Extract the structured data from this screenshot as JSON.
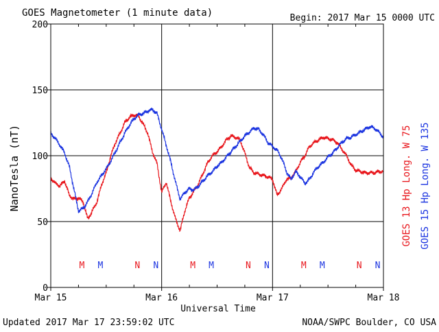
{
  "title": "GOES Magnetometer (1 minute data)",
  "begin": "Begin:  2017 Mar 15 0000 UTC",
  "footer_left": "Updated 2017 Mar 17 23:59:02 UTC",
  "footer_right": "NOAA/SWPC Boulder, CO USA",
  "colors": {
    "goes13": "#e8151b",
    "goes15": "#1a33e0",
    "axis": "#000000"
  },
  "chart_data": {
    "type": "line",
    "title": "GOES Magnetometer (1 minute data)",
    "xlabel": "Universal Time",
    "ylabel": "NanoTesla (nT)",
    "xlim": [
      "2017-03-15T00:00",
      "2017-03-18T00:00"
    ],
    "x_ticks": [
      "Mar 15",
      "Mar 16",
      "Mar 17",
      "Mar 18"
    ],
    "ylim": [
      0,
      200
    ],
    "y_ticks": [
      0,
      50,
      100,
      150,
      200
    ],
    "grid": true,
    "series": [
      {
        "name": "GOES 13 Hp  Long. W 75",
        "color": "#e8151b",
        "x": [
          "2017-03-15T00:00",
          "2017-03-15T01:00",
          "2017-03-15T02:00",
          "2017-03-15T03:00",
          "2017-03-15T04:00",
          "2017-03-15T05:00",
          "2017-03-15T06:00",
          "2017-03-15T07:00",
          "2017-03-15T08:00",
          "2017-03-15T09:00",
          "2017-03-15T10:00",
          "2017-03-15T11:00",
          "2017-03-15T12:00",
          "2017-03-15T13:00",
          "2017-03-15T14:00",
          "2017-03-15T15:00",
          "2017-03-15T16:00",
          "2017-03-15T17:00",
          "2017-03-15T18:00",
          "2017-03-15T19:00",
          "2017-03-15T20:00",
          "2017-03-15T21:00",
          "2017-03-15T22:00",
          "2017-03-15T23:00",
          "2017-03-16T00:00",
          "2017-03-16T01:00",
          "2017-03-16T02:00",
          "2017-03-16T03:00",
          "2017-03-16T04:00",
          "2017-03-16T05:00",
          "2017-03-16T06:00",
          "2017-03-16T07:00",
          "2017-03-16T08:00",
          "2017-03-16T09:00",
          "2017-03-16T10:00",
          "2017-03-16T11:00",
          "2017-03-16T12:00",
          "2017-03-16T13:00",
          "2017-03-16T14:00",
          "2017-03-16T15:00",
          "2017-03-16T16:00",
          "2017-03-16T17:00",
          "2017-03-16T18:00",
          "2017-03-16T19:00",
          "2017-03-16T20:00",
          "2017-03-16T21:00",
          "2017-03-16T22:00",
          "2017-03-16T23:00",
          "2017-03-17T00:00",
          "2017-03-17T01:00",
          "2017-03-17T02:00",
          "2017-03-17T03:00",
          "2017-03-17T04:00",
          "2017-03-17T05:00",
          "2017-03-17T06:00",
          "2017-03-17T07:00",
          "2017-03-17T08:00",
          "2017-03-17T09:00",
          "2017-03-17T10:00",
          "2017-03-17T11:00",
          "2017-03-17T12:00",
          "2017-03-17T13:00",
          "2017-03-17T14:00",
          "2017-03-17T15:00",
          "2017-03-17T16:00",
          "2017-03-17T17:00",
          "2017-03-17T18:00",
          "2017-03-17T19:00",
          "2017-03-17T20:00",
          "2017-03-17T21:00",
          "2017-03-17T22:00",
          "2017-03-17T23:00",
          "2017-03-18T00:00"
        ],
        "values": [
          83,
          79,
          77,
          81,
          70,
          67,
          68,
          65,
          52,
          58,
          65,
          78,
          87,
          100,
          110,
          117,
          125,
          129,
          131,
          130,
          124,
          117,
          103,
          94,
          72,
          80,
          65,
          52,
          43,
          58,
          68,
          73,
          79,
          87,
          95,
          100,
          103,
          107,
          112,
          115,
          114,
          112,
          102,
          91,
          87,
          86,
          85,
          84,
          82,
          70,
          75,
          82,
          83,
          88,
          95,
          100,
          107,
          110,
          112,
          114,
          113,
          112,
          110,
          105,
          100,
          93,
          89,
          88,
          87,
          87,
          87,
          88,
          88
        ]
      },
      {
        "name": "GOES 15 Hp  Long. W 135",
        "color": "#1a33e0",
        "x": [
          "2017-03-15T00:00",
          "2017-03-15T01:00",
          "2017-03-15T02:00",
          "2017-03-15T03:00",
          "2017-03-15T04:00",
          "2017-03-15T05:00",
          "2017-03-15T06:00",
          "2017-03-15T07:00",
          "2017-03-15T08:00",
          "2017-03-15T09:00",
          "2017-03-15T10:00",
          "2017-03-15T11:00",
          "2017-03-15T12:00",
          "2017-03-15T13:00",
          "2017-03-15T14:00",
          "2017-03-15T15:00",
          "2017-03-15T16:00",
          "2017-03-15T17:00",
          "2017-03-15T18:00",
          "2017-03-15T19:00",
          "2017-03-15T20:00",
          "2017-03-15T21:00",
          "2017-03-15T22:00",
          "2017-03-15T23:00",
          "2017-03-16T00:00",
          "2017-03-16T01:00",
          "2017-03-16T02:00",
          "2017-03-16T03:00",
          "2017-03-16T04:00",
          "2017-03-16T05:00",
          "2017-03-16T06:00",
          "2017-03-16T07:00",
          "2017-03-16T08:00",
          "2017-03-16T09:00",
          "2017-03-16T10:00",
          "2017-03-16T11:00",
          "2017-03-16T12:00",
          "2017-03-16T13:00",
          "2017-03-16T14:00",
          "2017-03-16T15:00",
          "2017-03-16T16:00",
          "2017-03-16T17:00",
          "2017-03-16T18:00",
          "2017-03-16T19:00",
          "2017-03-16T20:00",
          "2017-03-16T21:00",
          "2017-03-16T22:00",
          "2017-03-16T23:00",
          "2017-03-17T00:00",
          "2017-03-17T01:00",
          "2017-03-17T02:00",
          "2017-03-17T03:00",
          "2017-03-17T04:00",
          "2017-03-17T05:00",
          "2017-03-17T06:00",
          "2017-03-17T07:00",
          "2017-03-17T08:00",
          "2017-03-17T09:00",
          "2017-03-17T10:00",
          "2017-03-17T11:00",
          "2017-03-17T12:00",
          "2017-03-17T13:00",
          "2017-03-17T14:00",
          "2017-03-17T15:00",
          "2017-03-17T16:00",
          "2017-03-17T17:00",
          "2017-03-17T18:00",
          "2017-03-17T19:00",
          "2017-03-17T20:00",
          "2017-03-17T21:00",
          "2017-03-17T22:00",
          "2017-03-17T23:00",
          "2017-03-18T00:00"
        ],
        "values": [
          117,
          113,
          108,
          102,
          92,
          75,
          58,
          60,
          65,
          72,
          80,
          85,
          90,
          96,
          103,
          110,
          117,
          123,
          128,
          131,
          132,
          134,
          135,
          132,
          120,
          108,
          95,
          80,
          67,
          72,
          75,
          74,
          77,
          81,
          85,
          88,
          92,
          95,
          99,
          103,
          107,
          111,
          115,
          118,
          121,
          120,
          116,
          110,
          107,
          104,
          98,
          88,
          82,
          88,
          84,
          79,
          82,
          88,
          92,
          95,
          99,
          102,
          106,
          110,
          113,
          114,
          116,
          118,
          120,
          122,
          121,
          118,
          114
        ]
      }
    ],
    "annotations": [
      {
        "text": "M",
        "series": "GOES 13 Hp  Long. W 75",
        "x": "2017-03-15T06:45"
      },
      {
        "text": "M",
        "series": "GOES 15 Hp  Long. W 135",
        "x": "2017-03-15T10:45"
      },
      {
        "text": "N",
        "series": "GOES 13 Hp  Long. W 75",
        "x": "2017-03-15T18:45"
      },
      {
        "text": "N",
        "series": "GOES 15 Hp  Long. W 135",
        "x": "2017-03-15T22:45"
      },
      {
        "text": "M",
        "series": "GOES 13 Hp  Long. W 75",
        "x": "2017-03-16T06:45"
      },
      {
        "text": "M",
        "series": "GOES 15 Hp  Long. W 135",
        "x": "2017-03-16T10:45"
      },
      {
        "text": "N",
        "series": "GOES 13 Hp  Long. W 75",
        "x": "2017-03-16T18:45"
      },
      {
        "text": "N",
        "series": "GOES 15 Hp  Long. W 135",
        "x": "2017-03-16T22:45"
      },
      {
        "text": "M",
        "series": "GOES 13 Hp  Long. W 75",
        "x": "2017-03-17T06:45"
      },
      {
        "text": "M",
        "series": "GOES 15 Hp  Long. W 135",
        "x": "2017-03-17T10:45"
      },
      {
        "text": "N",
        "series": "GOES 13 Hp  Long. W 75",
        "x": "2017-03-17T18:45"
      },
      {
        "text": "N",
        "series": "GOES 15 Hp  Long. W 135",
        "x": "2017-03-17T22:45"
      }
    ]
  }
}
